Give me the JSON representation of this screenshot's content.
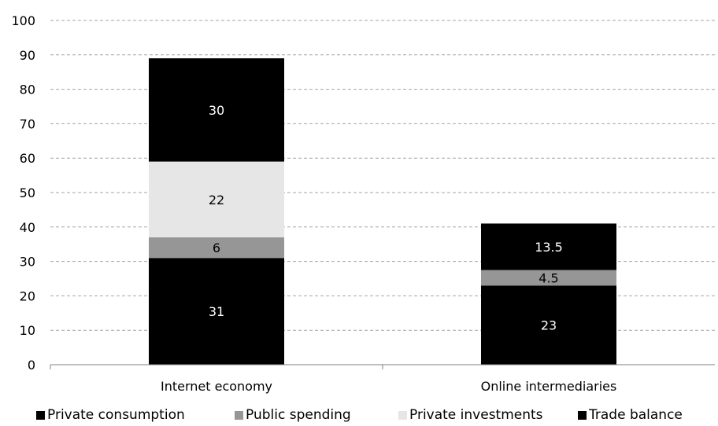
{
  "chart_data": {
    "type": "bar",
    "stacked": true,
    "title": "",
    "xlabel": "",
    "ylabel": "",
    "ylim": [
      0,
      100
    ],
    "yticks": [
      "0",
      "10",
      "20",
      "30",
      "40",
      "50",
      "60",
      "70",
      "80",
      "90",
      "100"
    ],
    "grid": true,
    "legend_position": "bottom",
    "categories": [
      "Internet economy",
      "Online intermediaries"
    ],
    "series": [
      {
        "name": "Private consumption",
        "color": "#000000",
        "values": [
          31,
          23
        ],
        "labels": [
          "31",
          "23"
        ]
      },
      {
        "name": "Public spending",
        "color": "#969696",
        "values": [
          6,
          4.5
        ],
        "labels": [
          "6",
          "4.5"
        ]
      },
      {
        "name": "Private investments",
        "color": "#e6e6e6",
        "values": [
          22,
          0
        ],
        "labels": [
          "22",
          "0"
        ]
      },
      {
        "name": "Trade balance",
        "color": "#000000",
        "values": [
          30,
          13.5
        ],
        "labels": [
          "30",
          "13.5"
        ]
      }
    ]
  }
}
